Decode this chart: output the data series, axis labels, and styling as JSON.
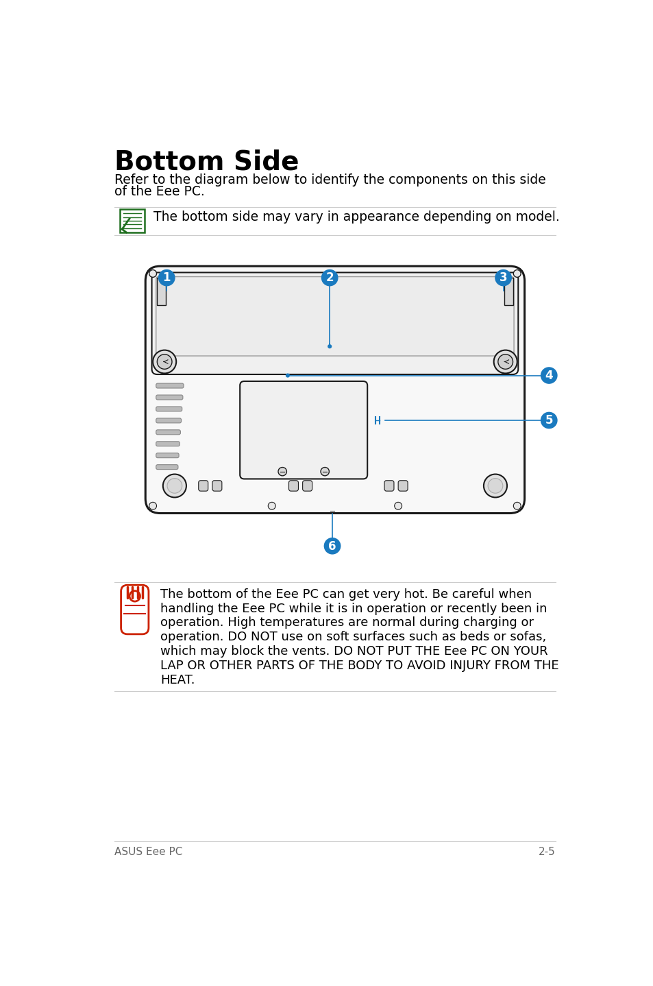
{
  "title": "Bottom Side",
  "subtitle_line1": "Refer to the diagram below to identify the components on this side",
  "subtitle_line2": "of the Eee PC.",
  "note_text": "The bottom side may vary in appearance depending on model.",
  "warning_text_lines": [
    "The bottom of the Eee PC can get very hot. Be careful when",
    "handling the Eee PC while it is in operation or recently been in",
    "operation. High temperatures are normal during charging or",
    "operation. DO NOT use on soft surfaces such as beds or sofas,",
    "which may block the vents. DO NOT PUT THE Eee PC ON YOUR",
    "LAP OR OTHER PARTS OF THE BODY TO AVOID INJURY FROM THE",
    "HEAT."
  ],
  "footer_left": "ASUS Eee PC",
  "footer_right": "2-5",
  "bg_color": "#ffffff",
  "text_color": "#000000",
  "blue_color": "#1a7abf",
  "green_color": "#1e6e1e",
  "red_color": "#cc2200",
  "line_color": "#cccccc",
  "device_stroke": "#1a1a1a",
  "device_fill": "#ffffff",
  "battery_fill": "#f0f0f0",
  "hdd_fill": "#f8f8f8",
  "vent_color": "#888888"
}
